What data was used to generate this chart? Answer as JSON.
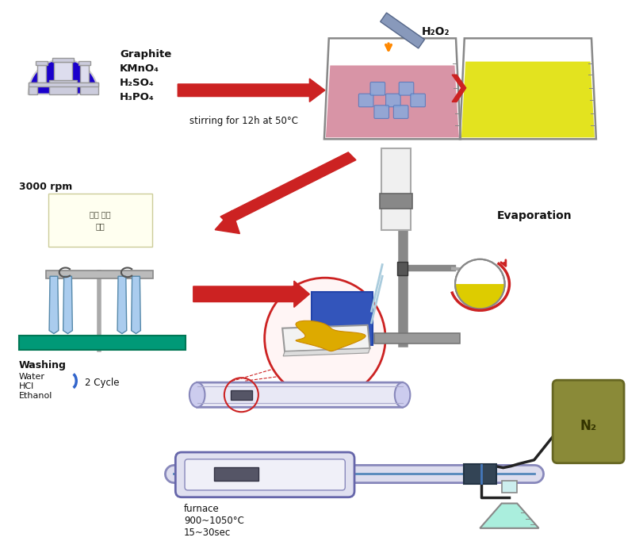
{
  "bg_color": "#ffffff",
  "fig_width": 8.11,
  "fig_height": 6.87,
  "texts": {
    "chemicals": "Graphite\nKMnO₄\nH₂SO₄\nH₃PO₄",
    "stirring": "stirring for 12h at 50°C",
    "h2o2": "H₂O₂",
    "evaporation": "Evaporation",
    "rpm": "3000 rpm",
    "washing": "Washing",
    "washing_items": "Water\nHCl\nEthanol",
    "cycle": "2 Cycle",
    "furnace": "furnace\n900~1050°C\n15~30sec",
    "n2": "N₂",
    "korean1": "액체 표면",
    "korean2": "침전"
  },
  "colors": {
    "arrow_red": "#cc2222",
    "arrow_orange": "#ff8800",
    "beaker_outline": "#888888",
    "liquid_red": "#c07080",
    "liquid_yellow": "#e8e800",
    "ice_blue": "#5588cc",
    "flask_blue": "#1a00cc",
    "text_dark": "#111111",
    "tube_color": "#ddddee",
    "tube_outline": "#8888aa",
    "n2_bg": "#8a8a38",
    "gray_stand": "#888888",
    "blue_box": "#3355bb",
    "condenser_gray": "#999999",
    "teal_base": "#009977"
  }
}
